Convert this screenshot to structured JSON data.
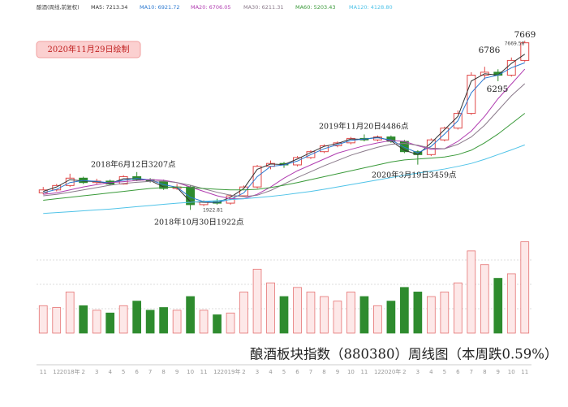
{
  "chart_data": {
    "type": "candlestick",
    "header": "酿酒(周线,前复权)",
    "stamp": "2020年11月29日绘制",
    "caption": "酿酒板块指数（880380）周线图（本周跌0.59%）",
    "categories": [
      "11",
      "12",
      "2018年",
      "2",
      "3",
      "4",
      "5",
      "6",
      "7",
      "8",
      "9",
      "10",
      "11",
      "12",
      "2019年",
      "2",
      "3",
      "4",
      "5",
      "6",
      "7",
      "8",
      "9",
      "10",
      "11",
      "12",
      "2020年",
      "2",
      "3",
      "4",
      "5",
      "6",
      "7",
      "8",
      "9",
      "10",
      "11"
    ],
    "open": [
      2500,
      2600,
      2750,
      3000,
      2850,
      2900,
      2800,
      3050,
      2950,
      2900,
      2650,
      2700,
      2100,
      2200,
      2150,
      2400,
      2700,
      3400,
      3500,
      3450,
      3700,
      3900,
      4100,
      4200,
      4350,
      4300,
      4400,
      4250,
      3900,
      3800,
      4300,
      4700,
      5200,
      6500,
      6600,
      6500,
      7000
    ],
    "close": [
      2600,
      2750,
      3000,
      2850,
      2900,
      2800,
      3050,
      2950,
      2900,
      2650,
      2700,
      2100,
      2200,
      2150,
      2400,
      2700,
      3400,
      3500,
      3450,
      3700,
      3900,
      4100,
      4200,
      4350,
      4300,
      4400,
      4250,
      3900,
      3800,
      4300,
      4700,
      5200,
      6500,
      6600,
      6500,
      7000,
      7600
    ],
    "high": [
      2700,
      2800,
      3150,
      3050,
      2980,
      2950,
      3100,
      3207,
      3000,
      2950,
      2800,
      2750,
      2250,
      2300,
      2450,
      2750,
      3450,
      3600,
      3550,
      3750,
      3950,
      4150,
      4250,
      4400,
      4486,
      4450,
      4450,
      4300,
      3950,
      4350,
      4750,
      5300,
      6600,
      6786,
      6700,
      7100,
      7669
    ],
    "low": [
      2450,
      2550,
      2700,
      2800,
      2800,
      2750,
      2780,
      2900,
      2850,
      2600,
      2600,
      1922,
      2050,
      2100,
      2100,
      2380,
      2650,
      3300,
      3350,
      3400,
      3650,
      3850,
      4050,
      4150,
      4250,
      4250,
      4200,
      3850,
      3459,
      3750,
      4250,
      4650,
      5150,
      6350,
      6295,
      6450,
      6950
    ],
    "up_color": "#e04848",
    "down_color": "#2e8b2e",
    "ylim": [
      1600,
      7950
    ],
    "series": [
      {
        "name": "MA5: 7213.34",
        "color": "#333333",
        "values": [
          2550,
          2700,
          2950,
          2900,
          2880,
          2820,
          2980,
          2980,
          2920,
          2700,
          2680,
          2200,
          2180,
          2170,
          2350,
          2650,
          3300,
          3480,
          3460,
          3650,
          3870,
          4080,
          4180,
          4330,
          4320,
          4390,
          4270,
          3950,
          3800,
          4200,
          4650,
          5100,
          6300,
          6550,
          6500,
          6900,
          7213
        ]
      },
      {
        "name": "MA10: 6921.72",
        "color": "#2a78d0",
        "values": [
          2500,
          2620,
          2850,
          2920,
          2890,
          2840,
          2930,
          2990,
          2940,
          2780,
          2690,
          2350,
          2200,
          2180,
          2280,
          2500,
          3050,
          3400,
          3450,
          3580,
          3800,
          4000,
          4140,
          4280,
          4330,
          4370,
          4300,
          4050,
          3860,
          4080,
          4500,
          4950,
          5900,
          6400,
          6500,
          6750,
          6922
        ]
      },
      {
        "name": "MA20: 6706.05",
        "color": "#b03cb0",
        "values": [
          2450,
          2500,
          2600,
          2700,
          2780,
          2850,
          2880,
          2920,
          2950,
          2930,
          2850,
          2700,
          2550,
          2400,
          2300,
          2300,
          2450,
          2700,
          3000,
          3250,
          3450,
          3650,
          3850,
          3980,
          4100,
          4200,
          4280,
          4250,
          4100,
          3980,
          4000,
          4250,
          4600,
          5100,
          5700,
          6200,
          6706
        ]
      },
      {
        "name": "MA30: 6211.31",
        "color": "#8a7a8a",
        "values": [
          2400,
          2450,
          2520,
          2600,
          2680,
          2760,
          2820,
          2860,
          2890,
          2900,
          2850,
          2760,
          2640,
          2520,
          2420,
          2370,
          2420,
          2580,
          2800,
          3020,
          3220,
          3420,
          3600,
          3780,
          3920,
          4050,
          4150,
          4180,
          4120,
          4020,
          4000,
          4150,
          4400,
          4800,
          5300,
          5800,
          6211
        ]
      },
      {
        "name": "MA60: 5203.43",
        "color": "#3a9a3a",
        "values": [
          2250,
          2300,
          2350,
          2400,
          2450,
          2500,
          2550,
          2600,
          2650,
          2680,
          2700,
          2680,
          2650,
          2620,
          2600,
          2600,
          2620,
          2680,
          2760,
          2850,
          2950,
          3050,
          3150,
          3250,
          3350,
          3450,
          3550,
          3620,
          3650,
          3680,
          3720,
          3800,
          3950,
          4200,
          4500,
          4850,
          5203
        ]
      },
      {
        "name": "MA120: 4128.80",
        "color": "#4fc3e8",
        "values": [
          1800,
          1830,
          1860,
          1890,
          1920,
          1950,
          1990,
          2030,
          2070,
          2110,
          2150,
          2180,
          2210,
          2240,
          2270,
          2300,
          2340,
          2380,
          2430,
          2490,
          2550,
          2620,
          2700,
          2780,
          2860,
          2940,
          3020,
          3100,
          3170,
          3240,
          3310,
          3400,
          3500,
          3640,
          3800,
          3960,
          4129
        ]
      }
    ],
    "volume": [
      30,
      28,
      45,
      30,
      25,
      22,
      30,
      35,
      25,
      28,
      25,
      40,
      25,
      20,
      22,
      45,
      70,
      55,
      40,
      50,
      45,
      40,
      35,
      45,
      40,
      30,
      35,
      50,
      45,
      40,
      45,
      55,
      90,
      75,
      60,
      65,
      100
    ],
    "vlim": [
      0,
      105
    ],
    "annotations": [
      "2018年6月12日3207点",
      "2018年10月30日1922点",
      "1922.81",
      "2019年11月20日4486点",
      "2020年3月19日3459点",
      "6786",
      "6295",
      "7669",
      "7669.58"
    ]
  }
}
